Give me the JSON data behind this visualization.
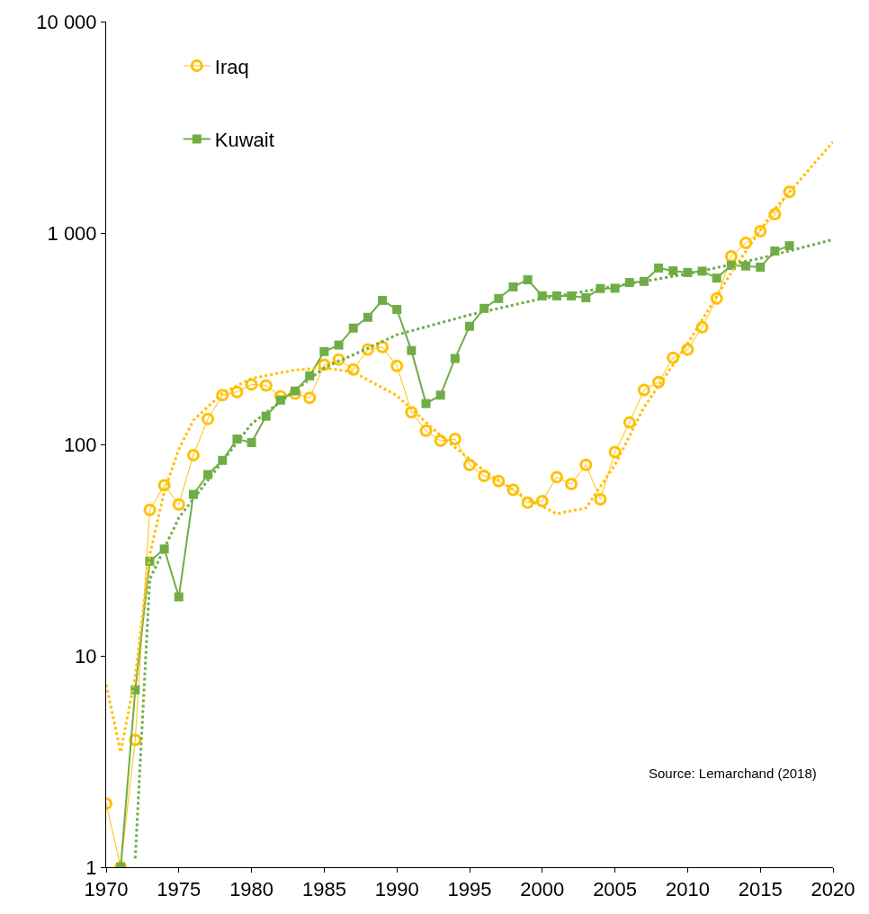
{
  "chart_data": {
    "type": "line",
    "log": "y",
    "x": [
      1970,
      1971,
      1972,
      1973,
      1974,
      1975,
      1976,
      1977,
      1978,
      1979,
      1980,
      1981,
      1982,
      1983,
      1984,
      1985,
      1986,
      1987,
      1988,
      1989,
      1990,
      1991,
      1992,
      1993,
      1994,
      1995,
      1996,
      1997,
      1998,
      1999,
      2000,
      2001,
      2002,
      2003,
      2004,
      2005,
      2006,
      2007,
      2008,
      2009,
      2010,
      2011,
      2012,
      2013,
      2014,
      2015,
      2016,
      2017
    ],
    "series": [
      {
        "name": "Iraq",
        "color": "#ffc000",
        "marker": "circle",
        "values": [
          2,
          1,
          4,
          49,
          64,
          52,
          89,
          132,
          171,
          177,
          192,
          190,
          169,
          174,
          166,
          238,
          252,
          226,
          281,
          289,
          235,
          142,
          116,
          104,
          106,
          80,
          71,
          67,
          61,
          53,
          54,
          70,
          65,
          80,
          55,
          92,
          127,
          181,
          197,
          257,
          281,
          358,
          490,
          775,
          897,
          1019,
          1227,
          1566
        ]
      },
      {
        "name": "Kuwait",
        "color": "#70ad47",
        "marker": "square",
        "values": [
          null,
          1,
          6.9,
          28,
          32,
          19,
          58,
          72,
          84,
          106,
          102,
          136,
          162,
          179,
          211,
          275,
          295,
          355,
          399,
          480,
          435,
          278,
          156,
          171,
          255,
          362,
          440,
          490,
          556,
          601,
          504,
          504,
          504,
          494,
          546,
          548,
          583,
          590,
          683,
          662,
          650,
          660,
          612,
          703,
          698,
          689,
          822,
          871
        ]
      },
      {
        "type": "line",
        "color": "#ffc000",
        "marker": "none",
        "line_style": "dotted",
        "x": [
          1970,
          1971,
          1972,
          1973,
          1974,
          1975,
          1976,
          1978,
          1980,
          1983,
          1985,
          1987,
          1990,
          1993,
          1996,
          1999,
          2001,
          2003,
          2005,
          2007,
          2010,
          2013,
          2016,
          2020
        ],
        "values": [
          7.3,
          3.5,
          8,
          30,
          60,
          95,
          130,
          175,
          205,
          225,
          230,
          220,
          170,
          110,
          75,
          55,
          47,
          50,
          80,
          150,
          300,
          650,
          1300,
          2700
        ]
      },
      {
        "type": "line",
        "color": "#70ad47",
        "marker": "none",
        "line_style": "dotted",
        "x": [
          1972,
          1973,
          1975,
          1980,
          1985,
          1990,
          1995,
          2000,
          2005,
          2010,
          2015,
          2020
        ],
        "values": [
          1.1,
          23,
          45,
          125,
          230,
          330,
          410,
          490,
          560,
          640,
          760,
          930
        ]
      }
    ],
    "xlim": [
      1970,
      2020
    ],
    "xticks": [
      1970,
      1975,
      1980,
      1985,
      1990,
      1995,
      2000,
      2005,
      2010,
      2015,
      2020
    ],
    "ylim": [
      1,
      10000
    ],
    "yticks": [
      1,
      10,
      100,
      {
        "value": 1000,
        "label": "1 000"
      },
      {
        "value": 10000,
        "label": "10 000"
      }
    ],
    "legend": "top left",
    "annotations": [
      {
        "text": "Source: Lemarchand (2018)"
      }
    ]
  }
}
